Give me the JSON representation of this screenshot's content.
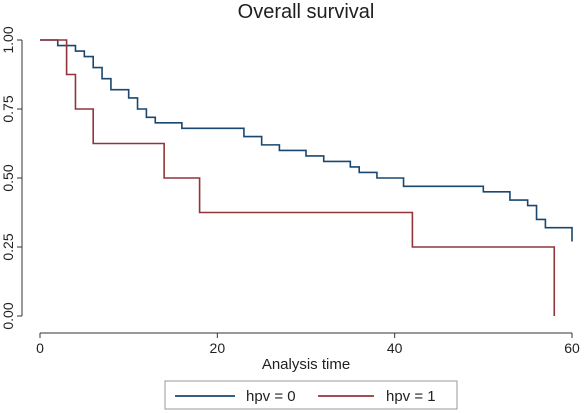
{
  "chart_data": {
    "type": "line",
    "step": true,
    "title": "Overall survival",
    "xlabel": "Analysis time",
    "ylabel": "",
    "xlim": [
      0,
      60
    ],
    "ylim": [
      0,
      1
    ],
    "x_ticks": [
      0,
      20,
      40,
      60
    ],
    "x_tick_labels": [
      "0",
      "20",
      "40",
      "60"
    ],
    "y_ticks": [
      0,
      0.25,
      0.5,
      0.75,
      1.0
    ],
    "y_tick_labels": [
      "0.00",
      "0.25",
      "0.50",
      "0.75",
      "1.00"
    ],
    "grid": false,
    "legend_position": "bottom",
    "series": [
      {
        "name": "hpv = 0",
        "color": "#1a476f",
        "points": [
          [
            0,
            1.0
          ],
          [
            2,
            0.98
          ],
          [
            4,
            0.96
          ],
          [
            5,
            0.94
          ],
          [
            6,
            0.9
          ],
          [
            7,
            0.86
          ],
          [
            8,
            0.82
          ],
          [
            10,
            0.79
          ],
          [
            11,
            0.75
          ],
          [
            12,
            0.72
          ],
          [
            13,
            0.7
          ],
          [
            16,
            0.68
          ],
          [
            23,
            0.65
          ],
          [
            25,
            0.62
          ],
          [
            27,
            0.6
          ],
          [
            30,
            0.58
          ],
          [
            32,
            0.56
          ],
          [
            35,
            0.54
          ],
          [
            36,
            0.52
          ],
          [
            38,
            0.5
          ],
          [
            41,
            0.47
          ],
          [
            50,
            0.45
          ],
          [
            53,
            0.42
          ],
          [
            55,
            0.4
          ],
          [
            56,
            0.35
          ],
          [
            57,
            0.32
          ],
          [
            60,
            0.27
          ]
        ]
      },
      {
        "name": "hpv = 1",
        "color": "#90353b",
        "points": [
          [
            0,
            1.0
          ],
          [
            3,
            0.875
          ],
          [
            4,
            0.75
          ],
          [
            6,
            0.625
          ],
          [
            14,
            0.5
          ],
          [
            18,
            0.375
          ],
          [
            42,
            0.25
          ],
          [
            58,
            0.0
          ]
        ]
      }
    ]
  }
}
